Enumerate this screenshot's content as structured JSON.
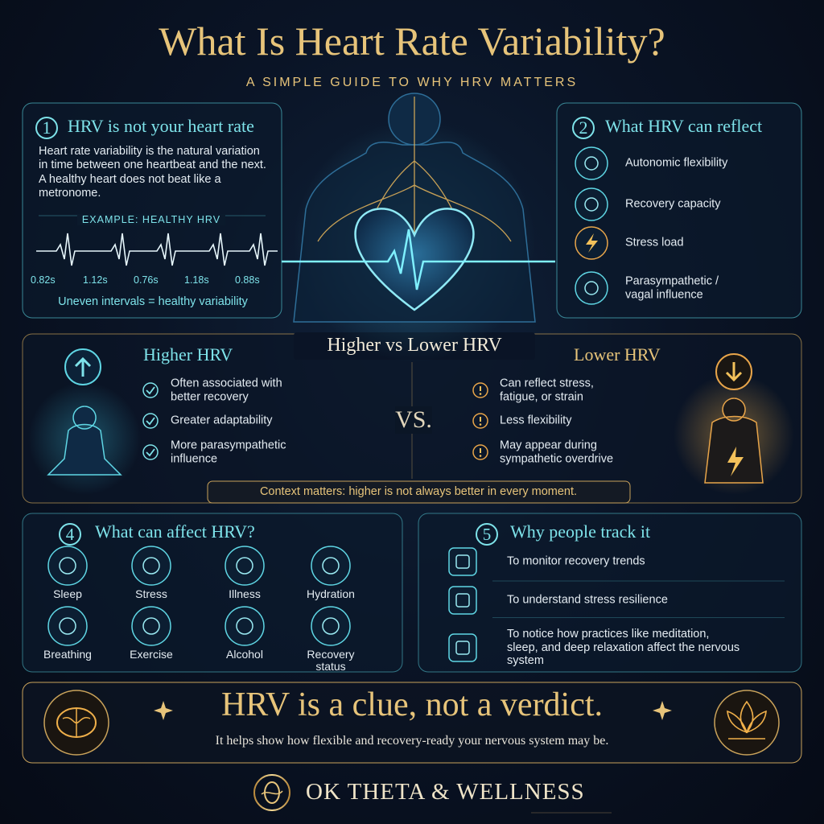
{
  "header": {
    "title": "What Is Heart Rate Variability?",
    "subtitle": "A SIMPLE GUIDE TO WHY HRV MATTERS"
  },
  "section1": {
    "number": "1",
    "title": "HRV is not your heart rate",
    "body": "Heart rate variability is the natural variation in time between one heartbeat and the next.  A healthy heart does not beat like a metronome.",
    "example_label": "EXAMPLE: HEALTHY HRV",
    "intervals": [
      "0.82s",
      "1.12s",
      "0.76s",
      "1.18s",
      "0.88s"
    ],
    "caption": "Uneven intervals = healthy variability"
  },
  "section2": {
    "number": "2",
    "title": "What HRV can reflect",
    "items": [
      "Autonomic flexibility",
      "Recovery capacity",
      "Stress load",
      "Parasympathetic / vagal influence"
    ]
  },
  "section3": {
    "title": "Higher vs Lower HRV",
    "higher": {
      "title": "Higher HRV",
      "items": [
        "Often associated with better recovery",
        "Greater adaptability",
        "More parasympathetic influence"
      ]
    },
    "vs": "VS.",
    "lower": {
      "title": "Lower HRV",
      "items": [
        "Can reflect stress, fatigue, or strain",
        "Less flexibility",
        "May appear during sympathetic overdrive"
      ]
    },
    "note": "Context matters: higher is not always better in every moment."
  },
  "section4": {
    "number": "4",
    "title": "What can affect HRV?",
    "factors": [
      "Sleep",
      "Stress",
      "Illness",
      "Hydration",
      "Breathing",
      "Exercise",
      "Alcohol",
      "Recovery status"
    ]
  },
  "section5": {
    "number": "5",
    "title": "Why people track it",
    "items": [
      "To monitor recovery trends",
      "To understand stress resilience",
      "To notice how practices like meditation, sleep, and deep relaxation affect the nervous system"
    ]
  },
  "banner": {
    "title": "HRV is a clue, not a verdict.",
    "subtitle": "It helps show how flexible and recovery-ready your nervous system may be."
  },
  "brand": {
    "name": "OK THETA & WELLNESS"
  }
}
